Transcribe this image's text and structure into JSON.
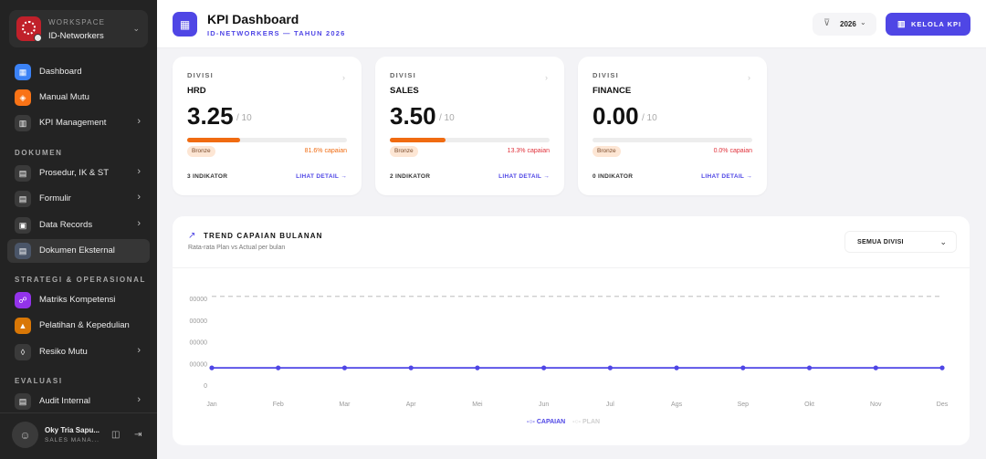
{
  "workspace": {
    "label": "WORKSPACE",
    "name": "ID-Networkers"
  },
  "nav": {
    "main": [
      {
        "label": "Dashboard",
        "icon": "grid-icon",
        "color": "#3b82f6",
        "chevron": false
      },
      {
        "label": "Manual Mutu",
        "icon": "shield-icon",
        "color": "#f97316",
        "chevron": false
      },
      {
        "label": "KPI Management",
        "icon": "chart-icon",
        "color": "#3a3a3a",
        "chevron": true
      }
    ],
    "sections": {
      "dokumen": "DOKUMEN",
      "strategi": "STRATEGI & OPERASIONAL",
      "evaluasi": "EVALUASI"
    },
    "dokumen": [
      {
        "label": "Prosedur, IK & ST",
        "chevron": true
      },
      {
        "label": "Formulir",
        "chevron": true
      },
      {
        "label": "Data Records",
        "chevron": true
      },
      {
        "label": "Dokumen Eksternal",
        "chevron": false,
        "active": true
      }
    ],
    "strategi": [
      {
        "label": "Matriks Kompetensi",
        "color": "#9333ea",
        "chevron": false
      },
      {
        "label": "Pelatihan & Kepedulian",
        "color": "#d97706",
        "chevron": false
      },
      {
        "label": "Resiko Mutu",
        "color": "#3a3a3a",
        "chevron": true
      }
    ],
    "evaluasi": [
      {
        "label": "Audit Internal",
        "chevron": true
      }
    ]
  },
  "user": {
    "name": "Oky Tria Sapu...",
    "role": "SALES MANA..."
  },
  "header": {
    "title": "KPI Dashboard",
    "subtitle": "ID-NETWORKERS — TAHUN 2026",
    "year": "2026",
    "manage_label": "KELOLA KPI"
  },
  "cards": [
    {
      "label": "DIVISI",
      "name": "HRD",
      "score": "3.25",
      "max": "/ 10",
      "progress": 0.33,
      "badge": "Bronze",
      "pct": "81.6% capaian",
      "pct_color": "#f06b11",
      "indicators": "3 INDIKATOR",
      "detail": "LIHAT DETAIL →"
    },
    {
      "label": "DIVISI",
      "name": "SALES",
      "score": "3.50",
      "max": "/ 10",
      "progress": 0.35,
      "badge": "Bronze",
      "pct": "13.3% capaian",
      "pct_color": "#e0313a",
      "indicators": "2 INDIKATOR",
      "detail": "LIHAT DETAIL →"
    },
    {
      "label": "DIVISI",
      "name": "FINANCE",
      "score": "0.00",
      "max": "/ 10",
      "progress": 0,
      "badge": "Bronze",
      "pct": "0.0% capaian",
      "pct_color": "#e0313a",
      "indicators": "0 INDIKATOR",
      "detail": "LIHAT DETAIL →"
    }
  ],
  "trend": {
    "title": "TREND CAPAIAN BULANAN",
    "subtitle": "Rata-rata Plan vs Actual per bulan",
    "filter": "SEMUA DIVISI",
    "legend_actual": "CAPAIAN",
    "legend_plan": "PLAN"
  },
  "chart_data": {
    "type": "line",
    "x": [
      "Jan",
      "Feb",
      "Mar",
      "Apr",
      "Mei",
      "Jun",
      "Jul",
      "Ags",
      "Sep",
      "Okt",
      "Nov",
      "Des"
    ],
    "y_tick_labels": [
      "00000",
      "00000",
      "00000",
      "00000",
      "0"
    ],
    "ylim": [
      0,
      4
    ],
    "series": [
      {
        "name": "CAPAIAN",
        "values": [
          0.5,
          0.5,
          0.5,
          0.5,
          0.5,
          0.5,
          0.5,
          0.5,
          0.5,
          0.5,
          0.5,
          0.5
        ],
        "color": "#4f46e5",
        "style": "solid"
      },
      {
        "name": "PLAN",
        "values": [
          3.8,
          3.8,
          3.8,
          3.8,
          3.8,
          3.8,
          3.8,
          3.8,
          3.8,
          3.8,
          3.8,
          3.8
        ],
        "color": "#c9c9c9",
        "style": "dashed"
      }
    ],
    "grid": false,
    "legend": "bottom-center"
  }
}
